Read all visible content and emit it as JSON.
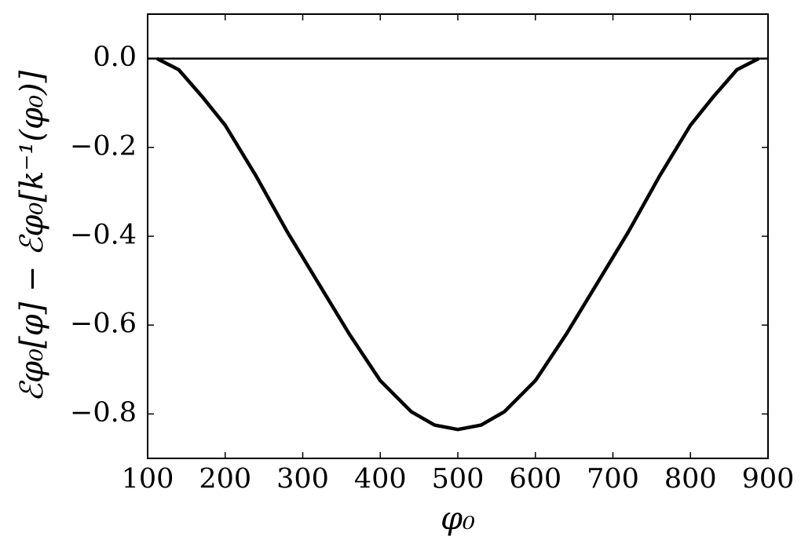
{
  "chart_data": {
    "type": "line",
    "xlabel": "φ₀",
    "ylabel": "ℰφ₀[φ] − ℰφ₀[k⁻¹(φ₀)]",
    "x": [
      112,
      140,
      170,
      200,
      240,
      280,
      320,
      360,
      400,
      440,
      470,
      500,
      530,
      560,
      600,
      640,
      680,
      720,
      760,
      800,
      830,
      860,
      888
    ],
    "series": [
      {
        "color": "#000000",
        "values": [
          0,
          -0.025,
          -0.085,
          -0.15,
          -0.265,
          -0.39,
          -0.505,
          -0.62,
          -0.725,
          -0.795,
          -0.825,
          -0.835,
          -0.825,
          -0.795,
          -0.725,
          -0.62,
          -0.505,
          -0.39,
          -0.265,
          -0.15,
          -0.085,
          -0.025,
          0
        ]
      }
    ],
    "hline": 0,
    "xlim": [
      100,
      900
    ],
    "ylim": [
      -0.9,
      0.1
    ],
    "xticks": [
      100,
      200,
      300,
      400,
      500,
      600,
      700,
      800,
      900
    ],
    "yticks": [
      {
        "value": -0.8,
        "label": "−0.8"
      },
      {
        "value": -0.6,
        "label": "−0.6"
      },
      {
        "value": -0.4,
        "label": "−0.4"
      },
      {
        "value": -0.2,
        "label": "−0.2"
      },
      {
        "value": 0,
        "label": "0.0"
      }
    ],
    "grid": false
  }
}
